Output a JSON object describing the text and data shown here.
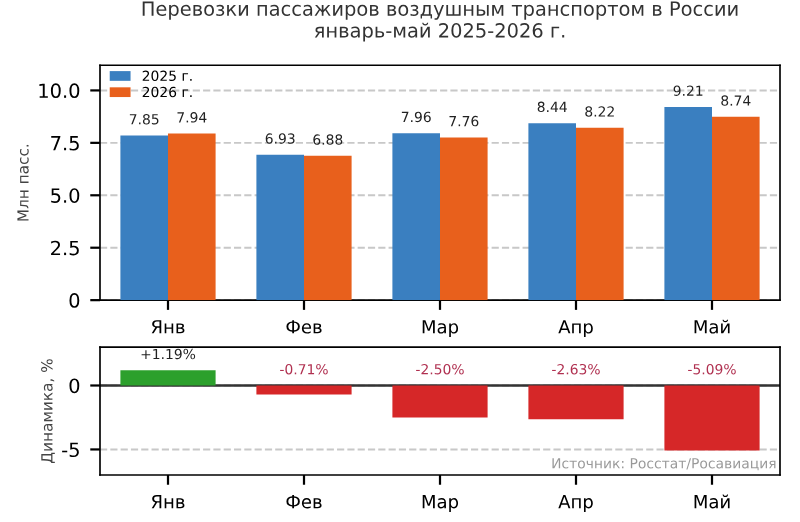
{
  "chart_data": [
    {
      "type": "bar",
      "title": "Перевозки пассажиров воздушным транспортом в России\nянварь-май 2025-2026 г.",
      "ylabel": "Млн пасс.",
      "categories": [
        "Янв",
        "Фев",
        "Мар",
        "Апр",
        "Май"
      ],
      "series": [
        {
          "name": "2025 г.",
          "color": "#3a7fc0",
          "values": [
            7.85,
            6.93,
            7.96,
            8.44,
            9.21
          ]
        },
        {
          "name": "2026 г.",
          "color": "#e8601c",
          "values": [
            7.94,
            6.88,
            7.76,
            8.22,
            8.74
          ]
        }
      ],
      "ylim": [
        0,
        11.2
      ],
      "yticks": [
        0,
        {
          "value": 2.5,
          "label": "2.5"
        },
        {
          "value": 5,
          "label": "5.0"
        },
        {
          "value": 7.5,
          "label": "7.5"
        },
        {
          "value": 10,
          "label": "10.0"
        }
      ],
      "grid": "y",
      "legend": "top left",
      "data_labels": true
    },
    {
      "type": "bar",
      "ylabel": "Динамика, %",
      "categories": [
        "Янв",
        "Фев",
        "Мар",
        "Апр",
        "Май"
      ],
      "values": [
        1.19,
        -0.71,
        -2.5,
        -2.63,
        -5.09
      ],
      "colors": [
        "#2ca02c",
        "#d62728",
        "#d62728",
        "#d62728",
        "#d62728"
      ],
      "value_labels": [
        "+1.19%",
        "-0.71%",
        "-2.50%",
        "-2.63%",
        "-5.09%"
      ],
      "ylim": [
        -7,
        3
      ],
      "yticks": [
        -5,
        0
      ],
      "grid": "y",
      "ref_lines": [
        {
          "axis": "y",
          "value": 0,
          "color": "#333333"
        }
      ],
      "annotations": [
        "Источник: Росстат/Росавиация"
      ]
    }
  ]
}
